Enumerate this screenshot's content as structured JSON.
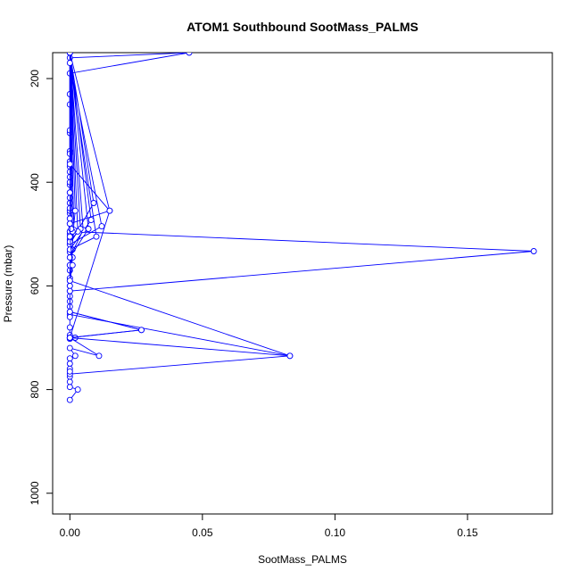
{
  "chart_data": {
    "type": "line",
    "title": "ATOM1 Southbound SootMass_PALMS",
    "xlabel": "SootMass_PALMS",
    "ylabel": "Pressure (mbar)",
    "xlim": [
      -0.0065,
      0.182
    ],
    "ylim": [
      1040,
      150
    ],
    "y_reversed": true,
    "x_ticks": [
      0.0,
      0.05,
      0.1,
      0.15
    ],
    "x_tick_labels": [
      "0.00",
      "0.05",
      "0.10",
      "0.15"
    ],
    "y_ticks": [
      200,
      400,
      600,
      800,
      1000
    ],
    "y_tick_labels": [
      "200",
      "400",
      "600",
      "800",
      "1000"
    ],
    "grid": false,
    "legend": "none",
    "series": [
      {
        "color": "#0000ff",
        "marker": "open-circle",
        "points": [
          [
            0.0,
            820
          ],
          [
            0.003,
            800
          ],
          [
            0.0,
            795
          ],
          [
            0.0,
            785
          ],
          [
            0.0,
            775
          ],
          [
            0.0,
            770
          ],
          [
            0.083,
            735
          ],
          [
            0.0,
            655
          ],
          [
            0.0,
            640
          ],
          [
            0.0,
            610
          ],
          [
            0.175,
            533
          ],
          [
            0.0,
            495
          ],
          [
            0.0,
            460
          ],
          [
            0.0,
            440
          ],
          [
            0.0,
            405
          ],
          [
            0.0,
            370
          ],
          [
            0.0,
            340
          ],
          [
            0.0,
            250
          ],
          [
            0.0,
            190
          ],
          [
            0.045,
            150
          ],
          [
            0.0,
            160
          ],
          [
            0.0,
            305
          ],
          [
            0.0,
            500
          ],
          [
            0.0,
            520
          ],
          [
            0.001,
            545
          ],
          [
            0.0,
            570
          ],
          [
            0.0,
            590
          ],
          [
            0.0,
            630
          ],
          [
            0.0,
            650
          ],
          [
            0.027,
            685
          ],
          [
            0.0,
            700
          ],
          [
            0.011,
            735
          ],
          [
            0.0,
            720
          ],
          [
            0.002,
            735
          ],
          [
            0.0,
            740
          ],
          [
            0.0,
            750
          ],
          [
            0.0,
            760
          ],
          [
            0.0,
            765
          ]
        ]
      },
      {
        "color": "#0000ff",
        "marker": "open-circle",
        "points": [
          [
            0.0,
            695
          ],
          [
            0.0,
            680
          ],
          [
            0.0,
            660
          ],
          [
            0.0,
            620
          ],
          [
            0.0,
            600
          ],
          [
            0.0,
            585
          ],
          [
            0.0,
            560
          ],
          [
            0.0,
            535
          ],
          [
            0.001,
            530
          ],
          [
            0.0,
            510
          ],
          [
            0.0,
            495
          ],
          [
            0.0,
            480
          ],
          [
            0.0,
            470
          ],
          [
            0.0,
            455
          ],
          [
            0.0,
            450
          ],
          [
            0.0,
            430
          ],
          [
            0.0,
            420
          ],
          [
            0.0,
            400
          ],
          [
            0.0,
            390
          ],
          [
            0.0,
            380
          ],
          [
            0.0,
            360
          ],
          [
            0.0,
            345
          ],
          [
            0.0,
            300
          ],
          [
            0.0,
            230
          ],
          [
            0.0,
            150
          ]
        ]
      },
      {
        "color": "#0000ff",
        "marker": "open-circle",
        "points": [
          [
            0.002,
            700
          ],
          [
            0.0,
            700
          ],
          [
            0.0,
            702
          ],
          [
            0.0,
            700
          ],
          [
            0.015,
            455
          ],
          [
            0.0,
            150
          ],
          [
            0.009,
            440
          ],
          [
            0.0,
            520
          ],
          [
            0.012,
            485
          ],
          [
            0.0,
            170
          ],
          [
            0.01,
            505
          ],
          [
            0.0,
            530
          ],
          [
            0.008,
            473
          ],
          [
            0.0,
            150
          ],
          [
            0.007,
            490
          ],
          [
            0.0,
            545
          ],
          [
            0.005,
            492
          ],
          [
            0.0,
            150
          ],
          [
            0.004,
            490
          ],
          [
            0.0,
            515
          ],
          [
            0.003,
            495
          ],
          [
            0.0,
            150
          ],
          [
            0.0015,
            492
          ],
          [
            0.0,
            560
          ],
          [
            0.002,
            455
          ],
          [
            0.0,
            150
          ],
          [
            0.001,
            495
          ],
          [
            0.0,
            600
          ],
          [
            0.0005,
            490
          ],
          [
            0.0,
            150
          ],
          [
            0.0,
            470
          ],
          [
            0.0,
            420
          ]
        ]
      },
      {
        "color": "#0000ff",
        "marker": "open-circle",
        "points": [
          [
            0.0,
            365
          ],
          [
            0.015,
            455
          ],
          [
            0.0,
            480
          ],
          [
            0.0,
            505
          ],
          [
            0.001,
            560
          ],
          [
            0.0,
            590
          ],
          [
            0.083,
            735
          ],
          [
            0.0,
            700
          ],
          [
            0.027,
            685
          ],
          [
            0.0,
            650
          ],
          [
            0.0,
            610
          ]
        ]
      }
    ]
  }
}
